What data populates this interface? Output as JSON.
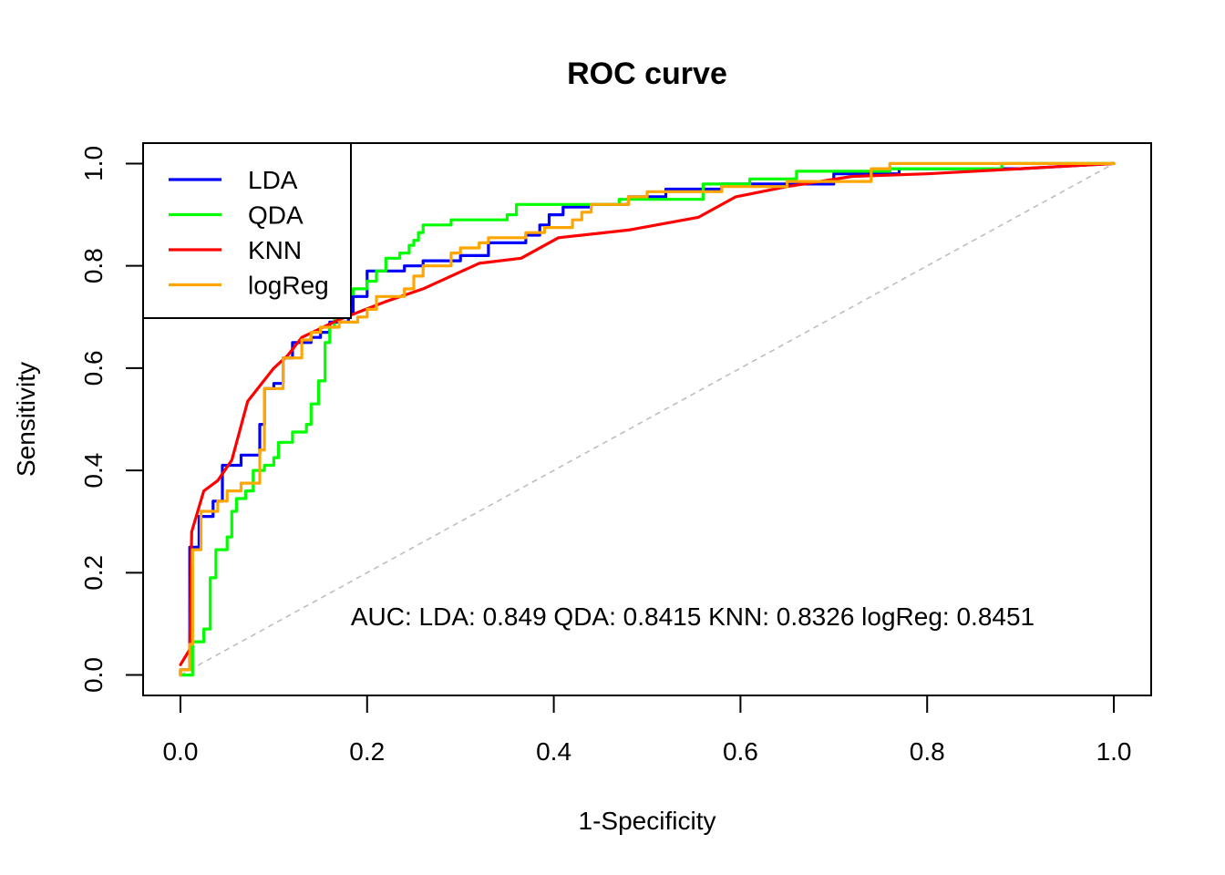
{
  "chart_data": {
    "type": "line",
    "title": "ROC curve",
    "xlabel": "1-Specificity",
    "ylabel": "Sensitivity",
    "xlim": [
      -0.04,
      1.04
    ],
    "ylim": [
      -0.04,
      1.04
    ],
    "xticks": [
      "0.0",
      "0.2",
      "0.4",
      "0.6",
      "0.8",
      "1.0"
    ],
    "yticks": [
      "0.0",
      "0.2",
      "0.4",
      "0.6",
      "0.8",
      "1.0"
    ],
    "grid": false,
    "legend_position": "top-left",
    "annotation": "AUC: LDA: 0.849 QDA: 0.8415 KNN: 0.8326 logReg: 0.8451",
    "diagonal": {
      "color": "#bebebe",
      "dashed": true
    },
    "series": [
      {
        "name": "LDA",
        "color": "#0000ff",
        "points": [
          [
            0,
            0
          ],
          [
            0,
            0.01
          ],
          [
            0.01,
            0.01
          ],
          [
            0.01,
            0.25
          ],
          [
            0.02,
            0.25
          ],
          [
            0.02,
            0.31
          ],
          [
            0.035,
            0.31
          ],
          [
            0.035,
            0.34
          ],
          [
            0.045,
            0.34
          ],
          [
            0.045,
            0.41
          ],
          [
            0.065,
            0.41
          ],
          [
            0.065,
            0.43
          ],
          [
            0.085,
            0.43
          ],
          [
            0.085,
            0.49
          ],
          [
            0.09,
            0.49
          ],
          [
            0.09,
            0.56
          ],
          [
            0.1,
            0.56
          ],
          [
            0.1,
            0.57
          ],
          [
            0.11,
            0.57
          ],
          [
            0.11,
            0.62
          ],
          [
            0.12,
            0.62
          ],
          [
            0.12,
            0.65
          ],
          [
            0.14,
            0.65
          ],
          [
            0.14,
            0.66
          ],
          [
            0.15,
            0.66
          ],
          [
            0.15,
            0.67
          ],
          [
            0.16,
            0.67
          ],
          [
            0.16,
            0.69
          ],
          [
            0.18,
            0.69
          ],
          [
            0.18,
            0.71
          ],
          [
            0.185,
            0.71
          ],
          [
            0.185,
            0.74
          ],
          [
            0.2,
            0.74
          ],
          [
            0.2,
            0.79
          ],
          [
            0.24,
            0.79
          ],
          [
            0.24,
            0.8
          ],
          [
            0.26,
            0.8
          ],
          [
            0.26,
            0.81
          ],
          [
            0.3,
            0.81
          ],
          [
            0.3,
            0.82
          ],
          [
            0.33,
            0.82
          ],
          [
            0.33,
            0.845
          ],
          [
            0.37,
            0.845
          ],
          [
            0.37,
            0.86
          ],
          [
            0.385,
            0.86
          ],
          [
            0.385,
            0.88
          ],
          [
            0.395,
            0.88
          ],
          [
            0.395,
            0.9
          ],
          [
            0.41,
            0.9
          ],
          [
            0.41,
            0.915
          ],
          [
            0.44,
            0.915
          ],
          [
            0.44,
            0.92
          ],
          [
            0.48,
            0.92
          ],
          [
            0.48,
            0.935
          ],
          [
            0.52,
            0.935
          ],
          [
            0.52,
            0.95
          ],
          [
            0.58,
            0.95
          ],
          [
            0.58,
            0.96
          ],
          [
            0.7,
            0.96
          ],
          [
            0.7,
            0.98
          ],
          [
            0.77,
            0.98
          ],
          [
            0.77,
            0.99
          ],
          [
            0.9,
            0.99
          ],
          [
            1,
            1
          ]
        ]
      },
      {
        "name": "QDA",
        "color": "#00ff00",
        "points": [
          [
            0,
            0
          ],
          [
            0.013,
            0
          ],
          [
            0.013,
            0.065
          ],
          [
            0.025,
            0.065
          ],
          [
            0.025,
            0.09
          ],
          [
            0.032,
            0.09
          ],
          [
            0.032,
            0.19
          ],
          [
            0.038,
            0.19
          ],
          [
            0.038,
            0.245
          ],
          [
            0.05,
            0.245
          ],
          [
            0.05,
            0.27
          ],
          [
            0.055,
            0.27
          ],
          [
            0.055,
            0.32
          ],
          [
            0.06,
            0.32
          ],
          [
            0.06,
            0.345
          ],
          [
            0.07,
            0.345
          ],
          [
            0.07,
            0.36
          ],
          [
            0.078,
            0.36
          ],
          [
            0.078,
            0.4
          ],
          [
            0.09,
            0.4
          ],
          [
            0.09,
            0.41
          ],
          [
            0.1,
            0.41
          ],
          [
            0.1,
            0.425
          ],
          [
            0.105,
            0.425
          ],
          [
            0.105,
            0.455
          ],
          [
            0.12,
            0.455
          ],
          [
            0.12,
            0.475
          ],
          [
            0.135,
            0.475
          ],
          [
            0.135,
            0.49
          ],
          [
            0.14,
            0.49
          ],
          [
            0.14,
            0.53
          ],
          [
            0.148,
            0.53
          ],
          [
            0.148,
            0.575
          ],
          [
            0.155,
            0.575
          ],
          [
            0.155,
            0.65
          ],
          [
            0.16,
            0.65
          ],
          [
            0.16,
            0.68
          ],
          [
            0.165,
            0.68
          ],
          [
            0.165,
            0.7
          ],
          [
            0.175,
            0.7
          ],
          [
            0.175,
            0.745
          ],
          [
            0.185,
            0.745
          ],
          [
            0.185,
            0.755
          ],
          [
            0.2,
            0.755
          ],
          [
            0.2,
            0.77
          ],
          [
            0.21,
            0.77
          ],
          [
            0.21,
            0.79
          ],
          [
            0.22,
            0.79
          ],
          [
            0.22,
            0.815
          ],
          [
            0.235,
            0.815
          ],
          [
            0.235,
            0.825
          ],
          [
            0.245,
            0.825
          ],
          [
            0.245,
            0.84
          ],
          [
            0.25,
            0.84
          ],
          [
            0.25,
            0.85
          ],
          [
            0.255,
            0.85
          ],
          [
            0.255,
            0.865
          ],
          [
            0.26,
            0.865
          ],
          [
            0.26,
            0.88
          ],
          [
            0.29,
            0.88
          ],
          [
            0.29,
            0.89
          ],
          [
            0.35,
            0.89
          ],
          [
            0.35,
            0.9
          ],
          [
            0.36,
            0.9
          ],
          [
            0.36,
            0.92
          ],
          [
            0.47,
            0.92
          ],
          [
            0.47,
            0.93
          ],
          [
            0.56,
            0.93
          ],
          [
            0.56,
            0.96
          ],
          [
            0.61,
            0.96
          ],
          [
            0.61,
            0.97
          ],
          [
            0.66,
            0.97
          ],
          [
            0.66,
            0.985
          ],
          [
            0.76,
            0.985
          ],
          [
            0.76,
            0.99
          ],
          [
            0.88,
            0.99
          ],
          [
            0.88,
            1
          ],
          [
            1,
            1
          ]
        ]
      },
      {
        "name": "KNN",
        "color": "#ff0000",
        "points": [
          [
            0,
            0.02
          ],
          [
            0.01,
            0.05
          ],
          [
            0.012,
            0.28
          ],
          [
            0.025,
            0.36
          ],
          [
            0.04,
            0.38
          ],
          [
            0.055,
            0.42
          ],
          [
            0.072,
            0.535
          ],
          [
            0.1,
            0.6
          ],
          [
            0.115,
            0.625
          ],
          [
            0.13,
            0.66
          ],
          [
            0.17,
            0.695
          ],
          [
            0.22,
            0.73
          ],
          [
            0.26,
            0.755
          ],
          [
            0.32,
            0.805
          ],
          [
            0.365,
            0.815
          ],
          [
            0.405,
            0.855
          ],
          [
            0.48,
            0.87
          ],
          [
            0.555,
            0.895
          ],
          [
            0.595,
            0.935
          ],
          [
            0.65,
            0.955
          ],
          [
            0.72,
            0.975
          ],
          [
            0.8,
            0.98
          ],
          [
            0.9,
            0.99
          ],
          [
            1,
            1
          ]
        ]
      },
      {
        "name": "logReg",
        "color": "#ffa500",
        "points": [
          [
            0,
            0
          ],
          [
            0,
            0.01
          ],
          [
            0.01,
            0.01
          ],
          [
            0.01,
            0.06
          ],
          [
            0.013,
            0.06
          ],
          [
            0.013,
            0.245
          ],
          [
            0.022,
            0.245
          ],
          [
            0.022,
            0.32
          ],
          [
            0.04,
            0.32
          ],
          [
            0.04,
            0.34
          ],
          [
            0.05,
            0.34
          ],
          [
            0.05,
            0.36
          ],
          [
            0.065,
            0.36
          ],
          [
            0.065,
            0.375
          ],
          [
            0.085,
            0.375
          ],
          [
            0.085,
            0.44
          ],
          [
            0.09,
            0.44
          ],
          [
            0.09,
            0.56
          ],
          [
            0.11,
            0.56
          ],
          [
            0.11,
            0.62
          ],
          [
            0.13,
            0.62
          ],
          [
            0.13,
            0.655
          ],
          [
            0.14,
            0.655
          ],
          [
            0.14,
            0.67
          ],
          [
            0.15,
            0.67
          ],
          [
            0.15,
            0.68
          ],
          [
            0.17,
            0.68
          ],
          [
            0.17,
            0.69
          ],
          [
            0.19,
            0.69
          ],
          [
            0.19,
            0.7
          ],
          [
            0.2,
            0.7
          ],
          [
            0.2,
            0.715
          ],
          [
            0.21,
            0.715
          ],
          [
            0.21,
            0.74
          ],
          [
            0.24,
            0.74
          ],
          [
            0.24,
            0.755
          ],
          [
            0.25,
            0.755
          ],
          [
            0.25,
            0.78
          ],
          [
            0.26,
            0.78
          ],
          [
            0.26,
            0.8
          ],
          [
            0.29,
            0.8
          ],
          [
            0.29,
            0.825
          ],
          [
            0.3,
            0.825
          ],
          [
            0.3,
            0.835
          ],
          [
            0.32,
            0.835
          ],
          [
            0.32,
            0.845
          ],
          [
            0.33,
            0.845
          ],
          [
            0.33,
            0.855
          ],
          [
            0.37,
            0.855
          ],
          [
            0.37,
            0.865
          ],
          [
            0.39,
            0.865
          ],
          [
            0.39,
            0.875
          ],
          [
            0.42,
            0.875
          ],
          [
            0.42,
            0.89
          ],
          [
            0.43,
            0.89
          ],
          [
            0.43,
            0.905
          ],
          [
            0.44,
            0.905
          ],
          [
            0.44,
            0.92
          ],
          [
            0.48,
            0.92
          ],
          [
            0.48,
            0.935
          ],
          [
            0.5,
            0.935
          ],
          [
            0.5,
            0.945
          ],
          [
            0.58,
            0.945
          ],
          [
            0.58,
            0.955
          ],
          [
            0.65,
            0.955
          ],
          [
            0.65,
            0.965
          ],
          [
            0.74,
            0.965
          ],
          [
            0.74,
            0.99
          ],
          [
            0.76,
            0.99
          ],
          [
            0.76,
            1
          ],
          [
            1,
            1
          ]
        ]
      }
    ]
  }
}
